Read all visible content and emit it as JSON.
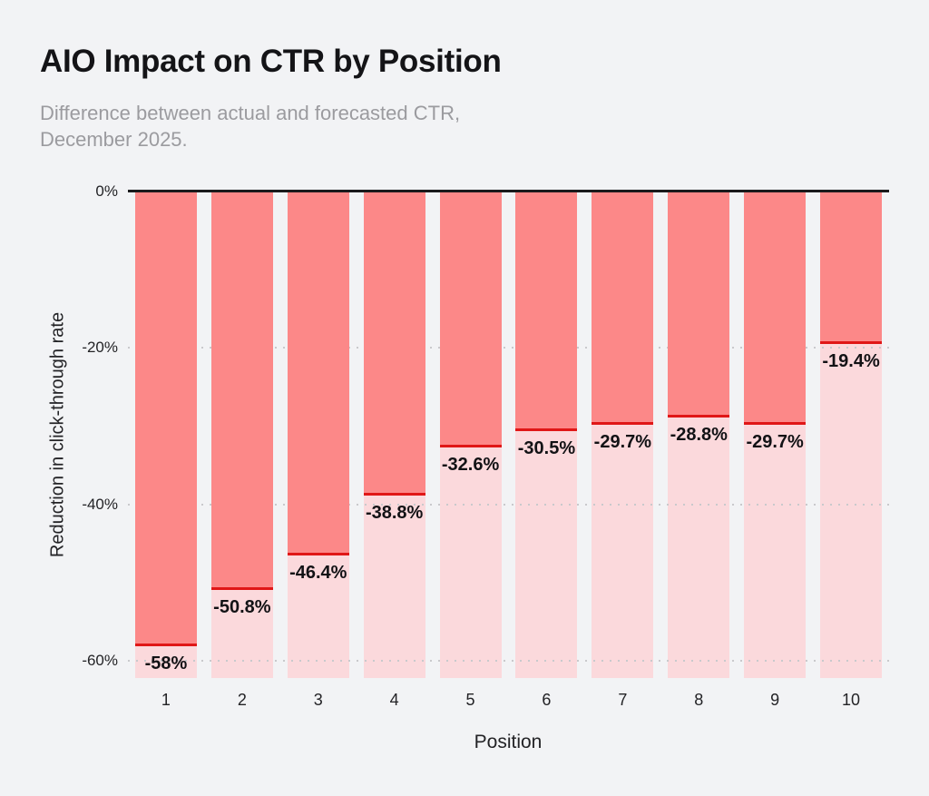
{
  "title": "AIO Impact on CTR by Position",
  "subtitle": "Difference between actual and forecasted CTR,\nDecember 2025.",
  "chart_data": {
    "type": "bar",
    "title": "AIO Impact on CTR by Position",
    "subtitle": "Difference between actual and forecasted CTR, December 2025.",
    "categories": [
      "1",
      "2",
      "3",
      "4",
      "5",
      "6",
      "7",
      "8",
      "9",
      "10"
    ],
    "values": [
      -58,
      -50.8,
      -46.4,
      -38.8,
      -32.6,
      -30.5,
      -29.7,
      -28.8,
      -29.7,
      -19.4
    ],
    "value_labels": [
      "-58%",
      "-50.8%",
      "-46.4%",
      "-38.8%",
      "-32.6%",
      "-30.5%",
      "-29.7%",
      "-28.8%",
      "-29.7%",
      "-19.4%"
    ],
    "xlabel": "Position",
    "ylabel": "Reduction in click-through rate",
    "ytick_labels": [
      "0%",
      "-20%",
      "-40%",
      "-60%"
    ],
    "ytick_values": [
      0,
      -20,
      -40,
      -60
    ],
    "ylim": [
      -62.2,
      0
    ],
    "grid": "horizontal-dotted",
    "legend": "none",
    "colors": {
      "bar": "#FC8888",
      "bar_track": "#FBD9DC",
      "marker_line": "#E01717",
      "zero_line": "#1A1A1C",
      "background": "#F2F3F5",
      "grid_dot": "#C9C9CC",
      "title_text": "#141417",
      "subtitle_text": "#9B9B9F",
      "axis_text": "#232326",
      "value_text": "#121215"
    }
  }
}
